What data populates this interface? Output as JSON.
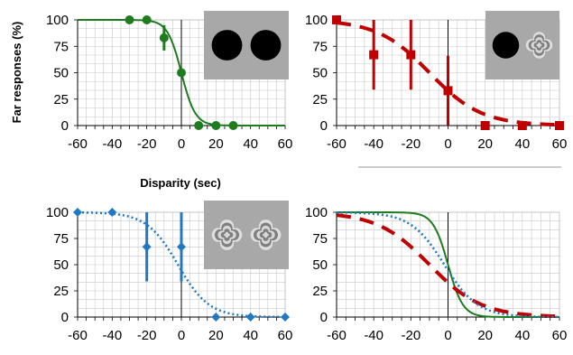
{
  "figure": {
    "ylabel": "Far responses (%)",
    "xlabel": "Disparity (sec)"
  },
  "colors": {
    "green": "#1e7b1e",
    "red": "#c00000",
    "blue": "#1f78c1",
    "grid": "#c8c8c8",
    "inset_bg": "#a8a8a8"
  },
  "chart_data": [
    {
      "type": "scatter",
      "panel": "top-left",
      "xlim": [
        -60,
        60
      ],
      "ylim": [
        0,
        100
      ],
      "xticks": [
        "-60",
        "-40",
        "-20",
        "0",
        "20",
        "40",
        "60"
      ],
      "yticks": [
        "0",
        "25",
        "50",
        "75",
        "100"
      ],
      "grid": true,
      "inset_icons": [
        "black-disc-icon",
        "black-disc-icon"
      ],
      "series": [
        {
          "color": "green",
          "marker": "circle",
          "line": "solid",
          "x": [
            -30,
            -20,
            -10,
            0,
            10,
            20,
            30
          ],
          "y": [
            100,
            100,
            83,
            50,
            0,
            0,
            0
          ],
          "err": [
            0,
            0,
            12,
            0,
            0,
            0,
            0
          ],
          "fit": {
            "mu": 0,
            "s": 4
          }
        }
      ]
    },
    {
      "type": "scatter",
      "panel": "top-right",
      "xlim": [
        -60,
        60
      ],
      "ylim": [
        0,
        100
      ],
      "xticks": [
        "-60",
        "-40",
        "-20",
        "0",
        "20",
        "40",
        "60"
      ],
      "yticks": [
        "0",
        "25",
        "50",
        "75",
        "100"
      ],
      "grid": true,
      "inset_icons": [
        "black-disc-icon",
        "starburst-icon"
      ],
      "series": [
        {
          "color": "red",
          "marker": "square",
          "line": "dashed",
          "x": [
            -60,
            -40,
            -20,
            0,
            20,
            40,
            60
          ],
          "y": [
            100,
            67,
            67,
            33,
            0,
            0,
            0
          ],
          "err": [
            0,
            33,
            33,
            33,
            0,
            0,
            0
          ],
          "fit": {
            "mu": -10,
            "s": 14
          }
        }
      ]
    },
    {
      "type": "scatter",
      "panel": "bottom-left",
      "xlim": [
        -60,
        60
      ],
      "ylim": [
        0,
        100
      ],
      "xticks": [
        "-60",
        "-40",
        "-20",
        "0",
        "20",
        "40",
        "60"
      ],
      "yticks": [
        "0",
        "25",
        "50",
        "75",
        "100"
      ],
      "grid": true,
      "inset_icons": [
        "starburst-icon",
        "starburst-icon"
      ],
      "series": [
        {
          "color": "blue",
          "marker": "diamond",
          "line": "dotted",
          "x": [
            -60,
            -40,
            -20,
            0,
            20,
            40,
            60
          ],
          "y": [
            100,
            100,
            67,
            67,
            0,
            0,
            0
          ],
          "err": [
            0,
            0,
            33,
            33,
            0,
            0,
            0
          ],
          "fit": {
            "mu": -2,
            "s": 9
          }
        }
      ]
    },
    {
      "type": "line",
      "panel": "bottom-right",
      "xlim": [
        -60,
        60
      ],
      "ylim": [
        0,
        100
      ],
      "xticks": [
        "-60",
        "-40",
        "-20",
        "0",
        "20",
        "40",
        "60"
      ],
      "yticks": [
        "0",
        "25",
        "50",
        "75",
        "100"
      ],
      "grid": true,
      "inset_icons": [],
      "series": [
        {
          "color": "green",
          "marker": "none",
          "line": "solid",
          "x": [],
          "y": [],
          "err": [],
          "fit": {
            "mu": 0,
            "s": 4
          }
        },
        {
          "color": "red",
          "marker": "none",
          "line": "dashed",
          "x": [],
          "y": [],
          "err": [],
          "fit": {
            "mu": -10,
            "s": 14
          }
        },
        {
          "color": "blue",
          "marker": "none",
          "line": "dotted",
          "x": [],
          "y": [],
          "err": [],
          "fit": {
            "mu": -2,
            "s": 9
          }
        }
      ]
    }
  ]
}
